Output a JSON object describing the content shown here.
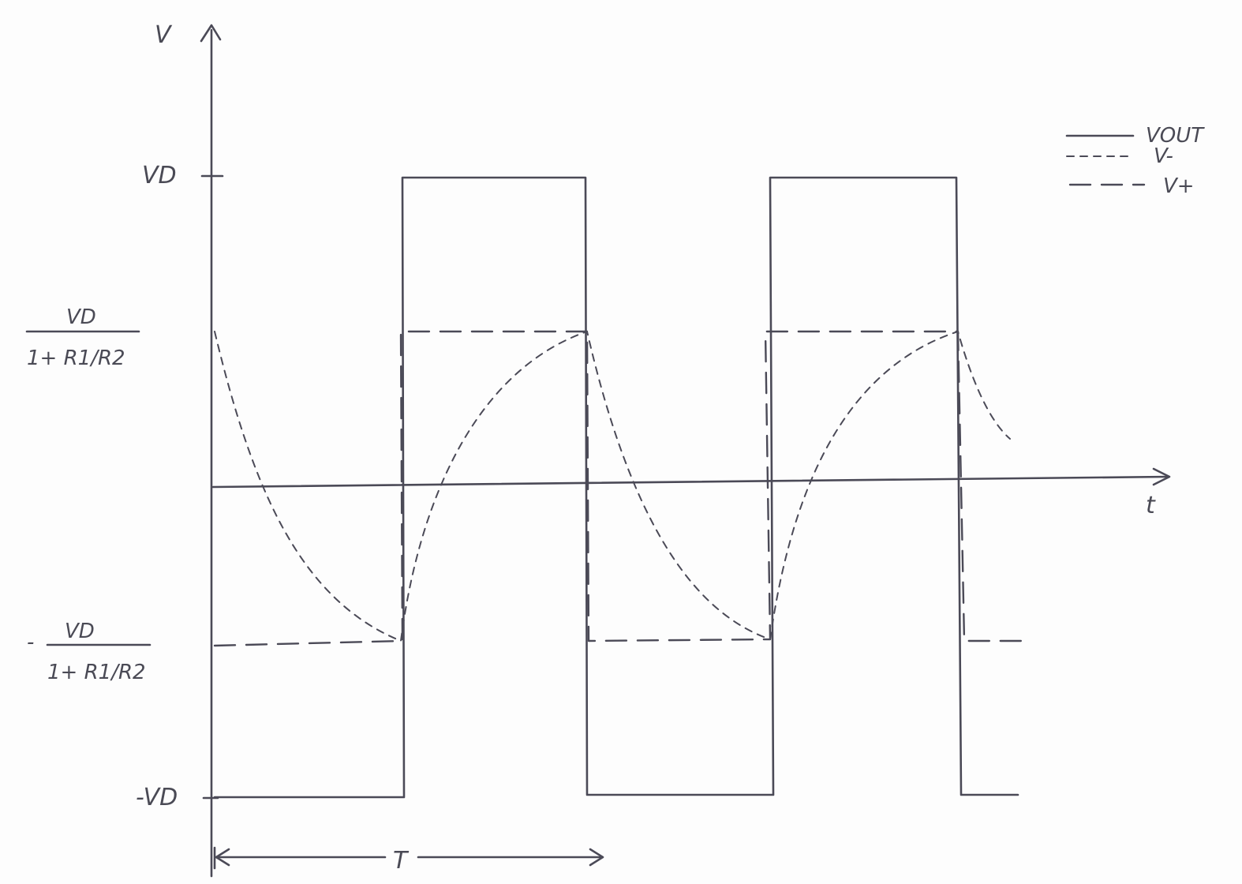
{
  "axes": {
    "y_label": "V",
    "x_label": "t"
  },
  "levels": {
    "vd": "VD",
    "neg_vd": "-VD",
    "pos_thresh_num": "VD",
    "pos_thresh_den": "1+ R1/R2",
    "neg_thresh_prefix": "-",
    "neg_thresh_num": "VD",
    "neg_thresh_den": "1+ R1/R2"
  },
  "period_label": "T",
  "legend": {
    "items": [
      {
        "label": "VOUT",
        "style": "solid"
      },
      {
        "label": "V-",
        "style": "short-dash"
      },
      {
        "label": "V+",
        "style": "long-dash"
      }
    ]
  },
  "colors": {
    "ink": "#4b4a57",
    "paper": "#fdfdfd"
  }
}
